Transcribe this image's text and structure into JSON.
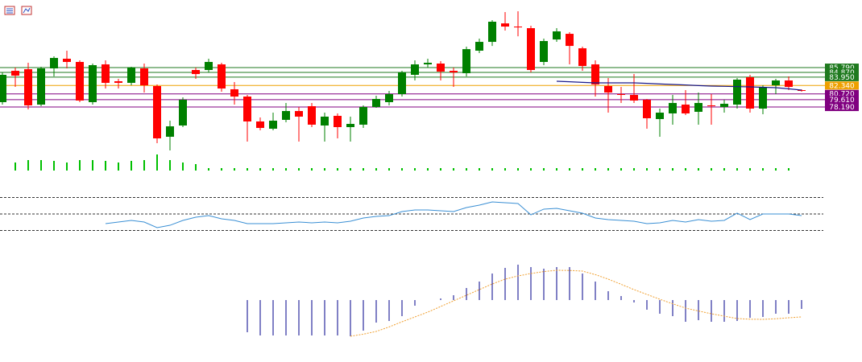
{
  "chart_data": {
    "type": "candlestick",
    "ylim": [
      69.5,
      97.5
    ],
    "up_color": "#008000",
    "down_color": "#ff0000",
    "open": [
      79.13,
      85.17,
      85.48,
      78.66,
      85.64,
      87.5,
      86.88,
      79.13,
      86.41,
      83.16,
      82.85,
      85.64,
      82.23,
      72.46,
      74.63,
      85.33,
      85.33,
      86.41,
      81.61,
      80.21,
      75.41,
      74.01,
      75.72,
      77.42,
      78.35,
      74.63,
      76.49,
      74.32,
      74.79,
      78.2,
      79.13,
      80.68,
      84.4,
      86.41,
      86.57,
      85.17,
      84.71,
      89.05,
      90.75,
      94.31,
      93.7,
      93.39,
      86.88,
      91.21,
      92.3,
      89.51,
      86.41,
      82.23,
      80.68,
      80.52,
      79.59,
      75.87,
      76.96,
      78.66,
      77.27,
      78.51,
      78.2,
      78.66,
      83.93,
      77.89,
      82.38,
      83.31,
      81.45
    ],
    "high": [
      84.86,
      85.79,
      86.72,
      85.95,
      87.96,
      89.05,
      87.19,
      86.57,
      87.19,
      83.62,
      85.95,
      86.57,
      82.54,
      75.56,
      80.06,
      85.79,
      87.5,
      86.72,
      83.0,
      80.52,
      76.18,
      77.11,
      78.97,
      78.2,
      78.97,
      77.11,
      76.96,
      76.34,
      78.51,
      80.37,
      81.3,
      85.17,
      87.19,
      87.5,
      87.03,
      85.79,
      89.82,
      91.37,
      94.94,
      96.49,
      96.64,
      93.85,
      91.37,
      93.39,
      92.61,
      89.82,
      87.19,
      83.78,
      82.07,
      84.55,
      79.75,
      77.89,
      80.52,
      81.45,
      80.99,
      80.68,
      79.59,
      83.78,
      84.4,
      82.38,
      83.62,
      84.09,
      81.61
    ],
    "low": [
      78.66,
      82.07,
      77.73,
      78.35,
      84.09,
      85.64,
      79.13,
      78.66,
      81.76,
      81.76,
      82.38,
      80.99,
      71.22,
      69.82,
      74.32,
      83.62,
      84.86,
      81.14,
      78.66,
      71.53,
      73.7,
      73.7,
      75.25,
      71.53,
      74.32,
      71.53,
      72.15,
      71.53,
      74.16,
      78.04,
      78.51,
      80.21,
      83.31,
      85.79,
      83.31,
      82.07,
      84.09,
      88.58,
      89.97,
      92.92,
      91.83,
      84.86,
      86.26,
      90.75,
      86.41,
      85.17,
      80.21,
      77.11,
      78.97,
      78.97,
      74.01,
      72.46,
      74.79,
      76.65,
      74.79,
      74.79,
      77.11,
      77.89,
      77.11,
      76.8,
      80.68,
      81.45,
      81.14
    ],
    "close": [
      84.4,
      84.24,
      78.51,
      85.64,
      87.65,
      86.88,
      79.44,
      86.26,
      82.85,
      82.85,
      85.79,
      82.38,
      72.15,
      74.47,
      79.59,
      84.55,
      86.88,
      81.76,
      80.21,
      75.41,
      74.16,
      75.56,
      77.42,
      76.34,
      74.79,
      76.34,
      74.32,
      74.94,
      78.2,
      79.75,
      80.68,
      84.86,
      86.41,
      86.72,
      85.02,
      84.86,
      89.35,
      90.75,
      94.63,
      93.7,
      93.54,
      85.33,
      90.91,
      92.77,
      89.97,
      86.1,
      82.54,
      80.99,
      80.52,
      79.44,
      76.03,
      77.11,
      78.97,
      76.96,
      78.97,
      78.35,
      78.82,
      83.47,
      77.89,
      82.07,
      83.31,
      82.07,
      81.3
    ],
    "levels": [
      {
        "value": 85.79,
        "label": "85.790",
        "color": "#1f7a1f"
      },
      {
        "value": 84.87,
        "label": "84.870",
        "color": "#1f7a1f"
      },
      {
        "value": 83.95,
        "label": "83.950",
        "color": "#1f7a1f"
      },
      {
        "value": 82.34,
        "label": "82.340",
        "color": "#eea000"
      },
      {
        "value": 80.72,
        "label": "80.720",
        "color": "#800080"
      },
      {
        "value": 79.61,
        "label": "79.610",
        "color": "#800080"
      },
      {
        "value": 78.19,
        "label": "78.190",
        "color": "#800080"
      }
    ],
    "ma": {
      "color": "#1a1a8c",
      "values": [
        null,
        null,
        null,
        null,
        null,
        null,
        null,
        null,
        null,
        null,
        null,
        null,
        null,
        null,
        null,
        null,
        null,
        null,
        null,
        null,
        null,
        null,
        null,
        null,
        null,
        null,
        null,
        null,
        null,
        null,
        null,
        null,
        null,
        null,
        null,
        null,
        null,
        null,
        null,
        null,
        null,
        null,
        null,
        83.16,
        83.06,
        82.95,
        82.85,
        82.85,
        82.85,
        82.85,
        82.75,
        82.64,
        82.54,
        82.44,
        82.33,
        82.23,
        82.18,
        82.12,
        82.07,
        82.0,
        81.92,
        81.7,
        81.45
      ]
    },
    "volume": {
      "color": "#00c000",
      "ylim": [
        0,
        25
      ],
      "values": [
        null,
        10,
        13,
        13,
        12,
        10,
        13,
        13,
        12,
        10,
        12,
        13,
        20,
        13,
        10,
        8,
        3,
        3,
        3,
        3,
        3,
        3,
        3,
        3,
        3,
        3,
        3,
        3,
        3,
        3,
        3,
        3,
        3,
        3,
        3,
        3,
        3,
        3,
        3,
        3,
        3,
        3,
        3,
        3,
        3,
        3,
        3,
        3,
        3,
        3,
        3,
        3,
        3,
        3,
        3,
        3,
        3,
        3,
        3,
        3,
        3,
        3,
        null
      ]
    },
    "rsi": {
      "color": "#3a8fd4",
      "ylim": [
        0,
        100
      ],
      "yticks": [
        30,
        50,
        70
      ],
      "values": [
        null,
        null,
        null,
        null,
        null,
        null,
        null,
        null,
        38.3,
        40.2,
        42.2,
        40.2,
        33.4,
        36.3,
        42.2,
        46.1,
        48.0,
        44.1,
        42.2,
        38.3,
        38.3,
        38.3,
        39.3,
        40.2,
        39.3,
        40.2,
        39.3,
        41.2,
        45.1,
        47.1,
        48.0,
        52.9,
        54.9,
        54.9,
        53.9,
        52.9,
        57.8,
        60.7,
        64.6,
        63.7,
        62.7,
        49.0,
        55.9,
        56.8,
        53.9,
        51.0,
        45.1,
        43.2,
        42.2,
        41.2,
        38.3,
        39.3,
        42.2,
        40.2,
        43.2,
        41.2,
        42.2,
        51.0,
        43.2,
        50,
        50,
        50,
        48.0
      ]
    },
    "macd": {
      "color": "#00008b",
      "ylim": [
        -2.5,
        2.5
      ],
      "values": [
        null,
        null,
        null,
        null,
        null,
        null,
        null,
        null,
        null,
        null,
        null,
        null,
        null,
        null,
        null,
        null,
        null,
        null,
        null,
        -2.0,
        -2.2,
        -2.2,
        -2.2,
        -2.2,
        -2.2,
        -2.2,
        -2.2,
        -2.25,
        -1.9,
        -1.4,
        -1.3,
        -1.0,
        -0.35,
        null,
        0.1,
        0.3,
        0.75,
        1.15,
        1.65,
        2.0,
        2.2,
        2.05,
        1.95,
        2.05,
        2.05,
        1.65,
        1.15,
        0.55,
        0.25,
        -0.15,
        -0.6,
        -0.85,
        -1.0,
        -1.35,
        -1.25,
        -1.35,
        -1.35,
        -1.3,
        -1.1,
        -1.05,
        -0.85,
        -0.85,
        -0.55
      ],
      "signal": {
        "color": "#f0a030",
        "values": [
          null,
          null,
          null,
          null,
          null,
          null,
          null,
          null,
          null,
          null,
          null,
          null,
          null,
          null,
          null,
          null,
          null,
          null,
          null,
          null,
          null,
          null,
          null,
          null,
          null,
          null,
          null,
          -2.25,
          -2.12,
          -1.95,
          -1.67,
          -1.35,
          -1.05,
          -0.75,
          -0.4,
          -0.05,
          0.3,
          0.65,
          1.0,
          1.3,
          1.5,
          1.65,
          1.77,
          1.85,
          1.84,
          1.8,
          1.58,
          1.3,
          0.98,
          0.65,
          0.35,
          0.05,
          -0.23,
          -0.5,
          -0.68,
          -0.85,
          -1.0,
          -1.15,
          -1.19,
          -1.2,
          -1.16,
          -1.1,
          -1.05
        ]
      }
    }
  }
}
